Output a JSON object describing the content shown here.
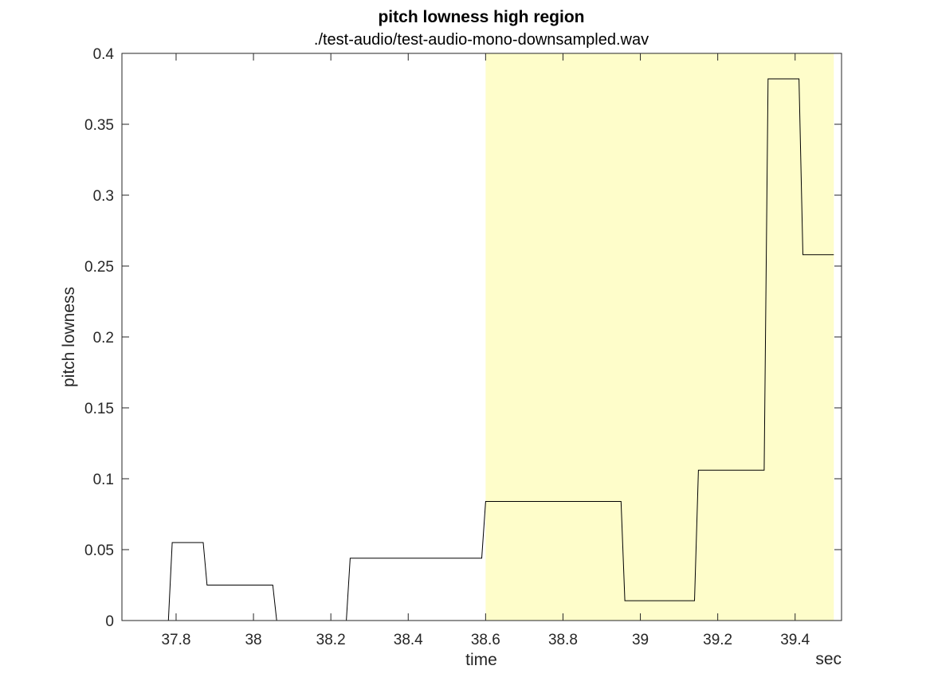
{
  "chart_data": {
    "type": "line",
    "title": "pitch lowness high region",
    "subtitle": "./test-audio/test-audio-mono-downsampled.wav",
    "xlabel": "time",
    "xunit": "sec",
    "ylabel": "pitch lowness",
    "xlim": [
      37.66,
      39.52
    ],
    "ylim": [
      0,
      0.4
    ],
    "xticks": [
      37.8,
      38,
      38.2,
      38.4,
      38.6,
      38.8,
      39,
      39.2,
      39.4
    ],
    "xtick_labels": [
      "37.8",
      "38",
      "38.2",
      "38.4",
      "38.6",
      "38.8",
      "39",
      "39.2",
      "39.4"
    ],
    "yticks": [
      0,
      0.05,
      0.1,
      0.15,
      0.2,
      0.25,
      0.3,
      0.35,
      0.4
    ],
    "ytick_labels": [
      "0",
      "0.05",
      "0.1",
      "0.15",
      "0.2",
      "0.25",
      "0.3",
      "0.35",
      "0.4"
    ],
    "grid": false,
    "highlight_region": {
      "x": [
        38.6,
        39.5
      ],
      "color": "#fefdca"
    },
    "line_color": "#000000",
    "series": [
      {
        "x": [
          37.7,
          37.78,
          37.79,
          37.87,
          37.88,
          38.05,
          38.06,
          38.24,
          38.25,
          38.59,
          38.6,
          38.95,
          38.96,
          39.14,
          39.15,
          39.32,
          39.33,
          39.41,
          39.42,
          39.5
        ],
        "y": [
          0,
          0,
          0.055,
          0.055,
          0.025,
          0.025,
          0,
          0,
          0.044,
          0.044,
          0.084,
          0.084,
          0.014,
          0.014,
          0.106,
          0.106,
          0.382,
          0.382,
          0.258,
          0.258
        ]
      }
    ]
  }
}
